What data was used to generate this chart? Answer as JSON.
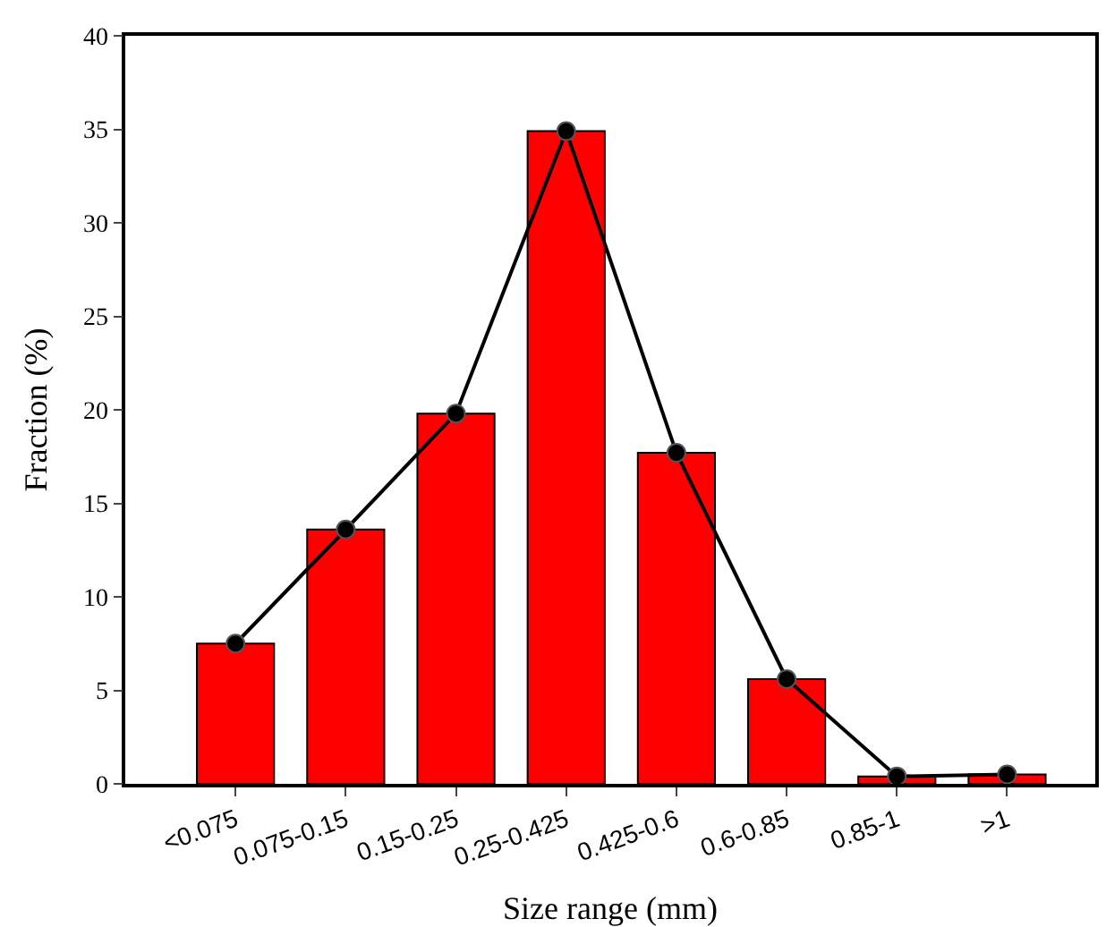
{
  "chart_data": {
    "type": "bar",
    "xlabel": "Size range (mm)",
    "ylabel": "Fraction (%)",
    "categories": [
      "<0.075",
      "0.075-0.15",
      "0.15-0.25",
      "0.25-0.425",
      "0.425-0.6",
      "0.6-0.85",
      "0.85-1",
      ">1"
    ],
    "series": [
      {
        "color": "#ff0000",
        "values": [
          7.5,
          13.6,
          19.8,
          34.9,
          17.7,
          5.6,
          0.4,
          0.5
        ]
      },
      {
        "type": "line",
        "color": "#000000",
        "marker": "circle",
        "line_style": "solid",
        "values": [
          7.5,
          13.6,
          19.8,
          34.9,
          17.7,
          5.6,
          0.4,
          0.5
        ]
      }
    ],
    "ylim": [
      0,
      40
    ],
    "yticks": [
      0,
      5,
      10,
      15,
      20,
      25,
      30,
      35,
      40
    ]
  }
}
